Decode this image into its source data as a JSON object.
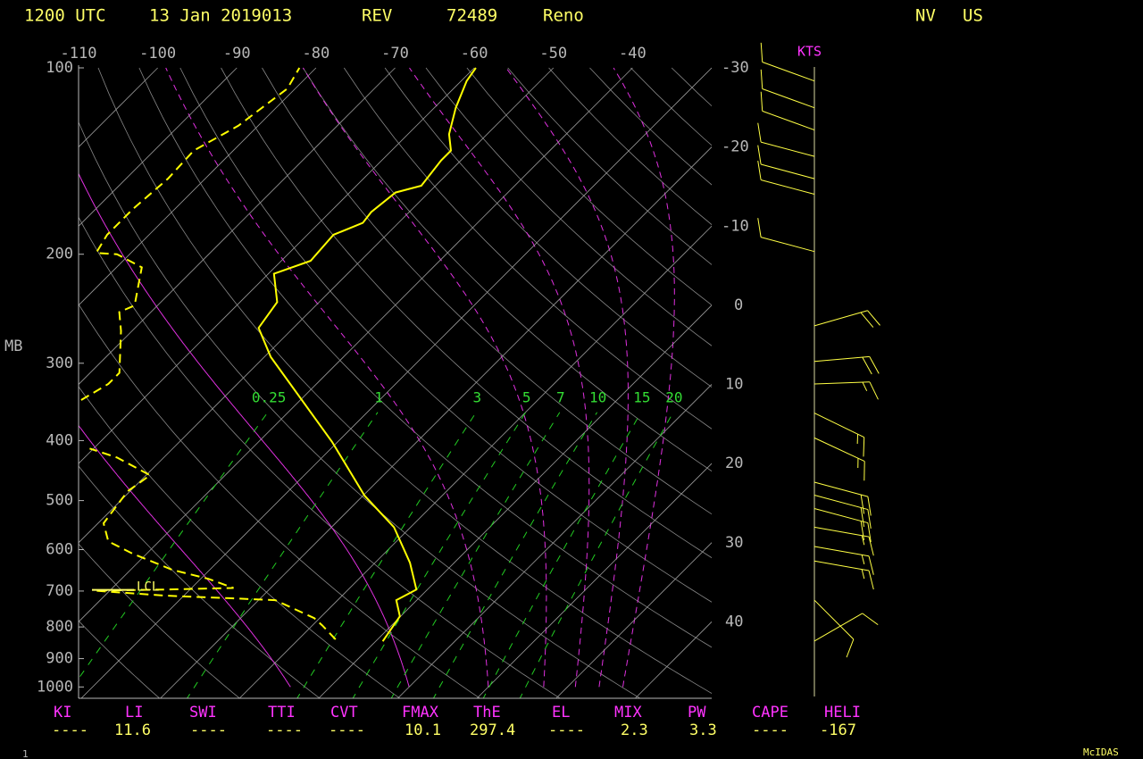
{
  "header": {
    "time": "1200 UTC",
    "date": "13 Jan 2019013",
    "station": "REV",
    "station_id": "72489",
    "city": "Reno",
    "state": "NV",
    "country": "US",
    "page": "1",
    "software": "McIDAS"
  },
  "chart_data": {
    "type": "skewt",
    "ylabel": "MB",
    "wind_label": "KTS",
    "ylim": [
      1050,
      100
    ],
    "yticks": [
      100,
      200,
      300,
      400,
      500,
      600,
      700,
      800,
      900,
      1000
    ],
    "log_y": true,
    "xlim": [
      -110,
      -30
    ],
    "xticks": [
      -110,
      -100,
      -90,
      -80,
      -70,
      -60,
      -50,
      -40
    ],
    "right_ticks": [
      -30,
      -20,
      -10,
      0,
      10,
      20,
      30,
      40
    ],
    "mixing_ratio_ticks": [
      0.25,
      1,
      3,
      5,
      7,
      10,
      15,
      20
    ],
    "series": [
      {
        "color": "#ffff00",
        "dashed": false,
        "x": [
          0.9,
          -0.1,
          -2.6,
          -1.4,
          -5.6,
          -12.1,
          -19.8,
          -30.7,
          -49.2,
          -54.4,
          -55.3,
          -59.3,
          -56.3,
          -56.7,
          -54.5,
          -54.8,
          -54.2,
          -51.8,
          -52.5,
          -52.5,
          -54.8,
          -57.3,
          -59.3,
          -59.8
        ],
        "values": [
          844,
          769,
          724,
          696,
          630,
          552,
          491,
          402,
          293,
          263,
          239,
          215,
          205,
          186,
          178,
          171,
          159,
          155,
          141,
          136,
          128,
          116,
          105,
          100
        ]
      },
      {
        "color": "#ffff00",
        "dashed": true,
        "x": [
          -5.3,
          -8.8,
          -10.7,
          -17.9,
          -23.7,
          -32.5,
          -41.9,
          -33.3,
          -24.7,
          -29.0,
          -34.7,
          -41.8,
          -46.4,
          -49.3,
          -50.3,
          -49.5,
          -55.9,
          -60.5,
          null,
          -67.7,
          -66.3,
          -66.3,
          -71.4,
          -74.0,
          -72.9,
          -76.8,
          -81.6,
          -84.4,
          -85.3,
          -85.3,
          -84.7,
          -85.0,
          -82.5,
          -81.0,
          -82.1
        ],
        "values": [
          838,
          795,
          774,
          724,
          719,
          712,
          699,
          696,
          692,
          669,
          647,
          609,
          582,
          544,
          483,
          455,
          426,
          412,
          null,
          344,
          324,
          311,
          266,
          248,
          242,
          210,
          200,
          199,
          186,
          169,
          151,
          136,
          124,
          108,
          100
        ]
      }
    ],
    "annotations": [
      {
        "text": "LCL",
        "pressure": 690
      }
    ],
    "winds": {
      "color": "#ffff44",
      "pressure": [
        105,
        116,
        126,
        139,
        151,
        160,
        198,
        261,
        298,
        324,
        361,
        396,
        467,
        490,
        515,
        552,
        593,
        626,
        724,
        843
      ],
      "direction": [
        290,
        290,
        290,
        285,
        285,
        285,
        285,
        74,
        85,
        88,
        116,
        115,
        105,
        105,
        105,
        100,
        100,
        100,
        135,
        60
      ],
      "speed": [
        10,
        10,
        10,
        10,
        10,
        10,
        10,
        20,
        20,
        15,
        15,
        15,
        20,
        20,
        20,
        15,
        15,
        15,
        10,
        10
      ]
    }
  },
  "indices": {
    "labels": [
      "KI",
      "LI",
      "SWI",
      "TTI",
      "CVT",
      "FMAX",
      "ThE",
      "EL",
      "MIX",
      "PW",
      "CAPE",
      "HELI"
    ],
    "values": [
      "----",
      "11.6",
      "----",
      "----",
      "----",
      "10.1",
      "297.4",
      "----",
      "2.3",
      "3.3",
      "----",
      "-167"
    ]
  }
}
